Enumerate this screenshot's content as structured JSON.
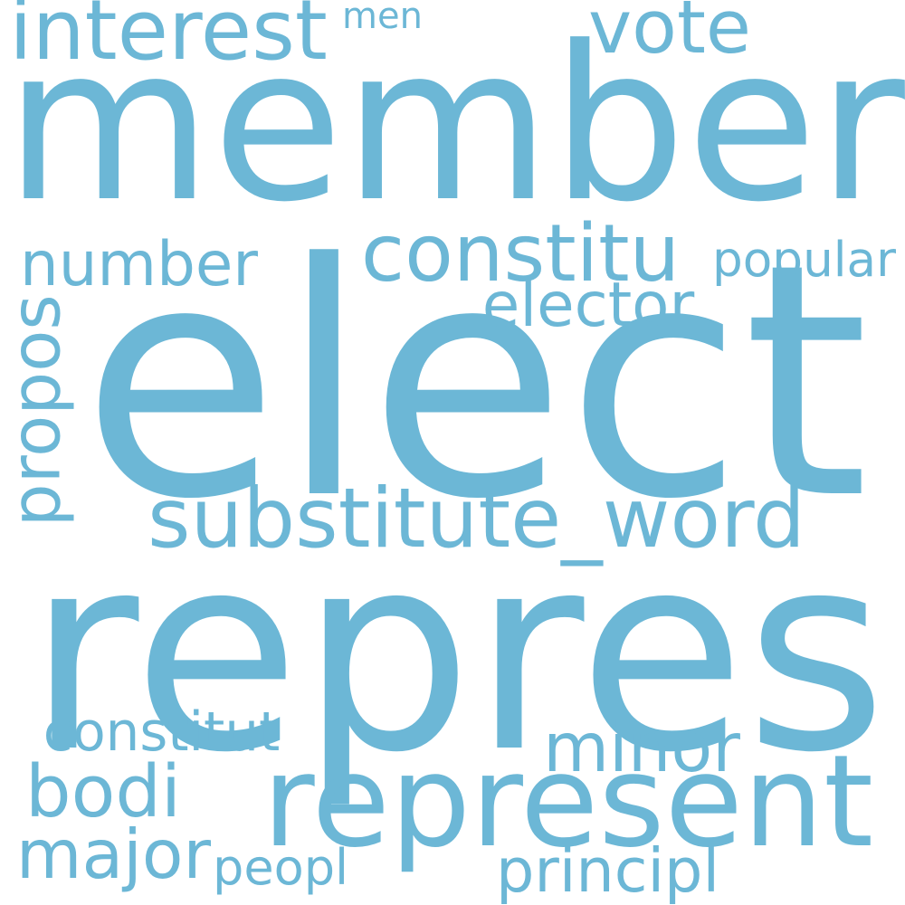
{
  "word_color": "#6cb7d6",
  "background_color": "#ffffff",
  "words": [
    {
      "id": "member",
      "text": "member"
    },
    {
      "id": "elect",
      "text": "elect"
    },
    {
      "id": "repres",
      "text": "repres"
    },
    {
      "id": "represent",
      "text": "represent"
    },
    {
      "id": "substitute_word",
      "text": "substitute_word"
    },
    {
      "id": "constitu",
      "text": "constitu"
    },
    {
      "id": "interest",
      "text": "interest"
    },
    {
      "id": "vote",
      "text": "vote"
    },
    {
      "id": "number",
      "text": "number"
    },
    {
      "id": "elector",
      "text": "elector"
    },
    {
      "id": "popular",
      "text": "popular"
    },
    {
      "id": "propos",
      "text": "propos"
    },
    {
      "id": "minor",
      "text": "minor"
    },
    {
      "id": "bodi",
      "text": "bodi"
    },
    {
      "id": "major",
      "text": "major"
    },
    {
      "id": "constitut",
      "text": "constitut"
    },
    {
      "id": "peopl",
      "text": "peopl"
    },
    {
      "id": "principl",
      "text": "principl"
    },
    {
      "id": "men",
      "text": "men"
    }
  ]
}
